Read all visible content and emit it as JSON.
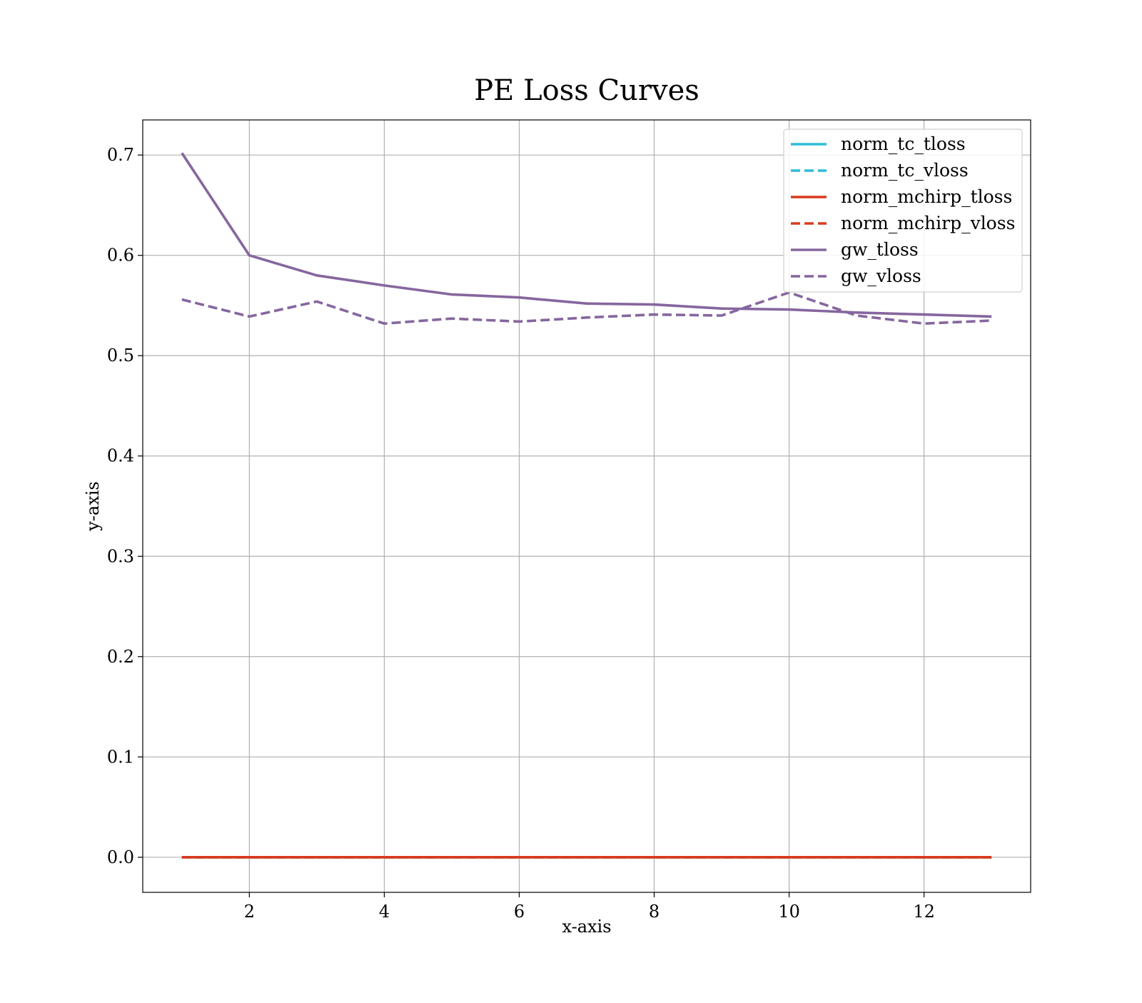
{
  "chart_data": {
    "type": "line",
    "title": "PE Loss Curves",
    "xlabel": "x-axis",
    "ylabel": "y-axis",
    "xlim": [
      0.42,
      13.58
    ],
    "ylim": [
      -0.035,
      0.735
    ],
    "xticks": [
      2,
      4,
      6,
      8,
      10,
      12
    ],
    "xtick_labels": [
      "2",
      "4",
      "6",
      "8",
      "10",
      "12"
    ],
    "yticks": [
      0.0,
      0.1,
      0.2,
      0.3,
      0.4,
      0.5,
      0.6,
      0.7
    ],
    "ytick_labels": [
      "0.0",
      "0.1",
      "0.2",
      "0.3",
      "0.4",
      "0.5",
      "0.6",
      "0.7"
    ],
    "grid": true,
    "legend_position": "top-right",
    "x": [
      1,
      2,
      3,
      4,
      5,
      6,
      7,
      8,
      9,
      10,
      11,
      12,
      13
    ],
    "series": [
      {
        "name": "norm_tc_tloss",
        "color": "#2cbcd6",
        "style": "solid",
        "values": [
          0,
          0,
          0,
          0,
          0,
          0,
          0,
          0,
          0,
          0,
          0,
          0,
          0
        ]
      },
      {
        "name": "norm_tc_vloss",
        "color": "#2cbcd6",
        "style": "dashed",
        "values": [
          0,
          0,
          0,
          0,
          0,
          0,
          0,
          0,
          0,
          0,
          0,
          0,
          0
        ]
      },
      {
        "name": "norm_mchirp_tloss",
        "color": "#d83a1d",
        "style": "solid",
        "values": [
          0,
          0,
          0,
          0,
          0,
          0,
          0,
          0,
          0,
          0,
          0,
          0,
          0
        ]
      },
      {
        "name": "norm_mchirp_vloss",
        "color": "#d83a1d",
        "style": "dashed",
        "values": [
          0,
          0,
          0,
          0,
          0,
          0,
          0,
          0,
          0,
          0,
          0,
          0,
          0
        ]
      },
      {
        "name": "gw_tloss",
        "color": "#86669e",
        "style": "solid",
        "values": [
          0.702,
          0.6,
          0.58,
          0.57,
          0.561,
          0.558,
          0.552,
          0.551,
          0.547,
          0.546,
          0.543,
          0.541,
          0.539
        ]
      },
      {
        "name": "gw_vloss",
        "color": "#86669e",
        "style": "dashed",
        "values": [
          0.556,
          0.539,
          0.554,
          0.532,
          0.537,
          0.534,
          0.538,
          0.541,
          0.54,
          0.563,
          0.54,
          0.532,
          0.535
        ]
      }
    ]
  }
}
